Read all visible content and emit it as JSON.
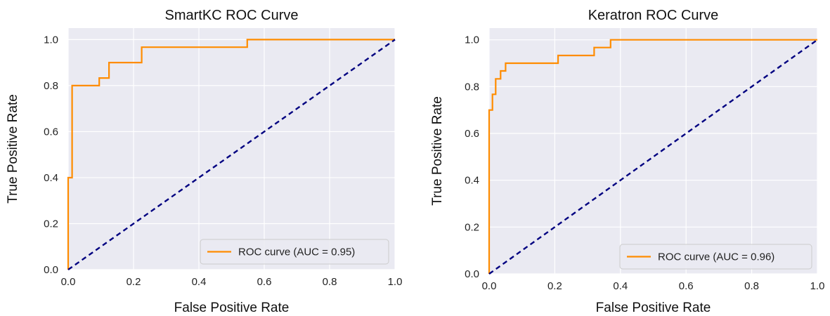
{
  "chart_data": [
    {
      "type": "line",
      "title": "SmartKC ROC Curve",
      "xlabel": "False Positive Rate",
      "ylabel": "True Positive Rate",
      "xlim": [
        0.0,
        1.0
      ],
      "ylim": [
        0.0,
        1.05
      ],
      "xticks": [
        "0.0",
        "0.2",
        "0.4",
        "0.6",
        "0.8",
        "1.0"
      ],
      "yticks": [
        "0.0",
        "0.2",
        "0.4",
        "0.6",
        "0.8",
        "1.0"
      ],
      "grid": true,
      "legend_position": "lower-right",
      "series": [
        {
          "name": "ROC curve (AUC = 0.95)",
          "color": "#ff8c00",
          "style": "solid",
          "x": [
            0.0,
            0.0,
            0.012,
            0.012,
            0.095,
            0.095,
            0.125,
            0.125,
            0.225,
            0.225,
            0.548,
            0.548,
            1.0
          ],
          "y": [
            0.0,
            0.4,
            0.4,
            0.8,
            0.8,
            0.833,
            0.833,
            0.9,
            0.9,
            0.967,
            0.967,
            1.0,
            1.0
          ]
        },
        {
          "color": "#000080",
          "style": "dashed",
          "x": [
            0.0,
            1.0
          ],
          "y": [
            0.0,
            1.0
          ]
        }
      ]
    },
    {
      "type": "line",
      "title": "Keratron ROC Curve",
      "xlabel": "False Positive Rate",
      "ylabel": "True Positive Rate",
      "xlim": [
        0.0,
        1.0
      ],
      "ylim": [
        0.0,
        1.05
      ],
      "xticks": [
        "0.0",
        "0.2",
        "0.4",
        "0.6",
        "0.8",
        "1.0"
      ],
      "yticks": [
        "0.0",
        "0.2",
        "0.4",
        "0.6",
        "0.8",
        "1.0"
      ],
      "grid": true,
      "legend_position": "lower-right",
      "series": [
        {
          "name": "ROC curve (AUC = 0.96)",
          "color": "#ff8c00",
          "style": "solid",
          "x": [
            0.0,
            0.0,
            0.01,
            0.01,
            0.02,
            0.02,
            0.035,
            0.035,
            0.05,
            0.05,
            0.065,
            0.065,
            0.21,
            0.21,
            0.32,
            0.32,
            0.37,
            0.37,
            1.0
          ],
          "y": [
            0.0,
            0.7,
            0.7,
            0.767,
            0.767,
            0.833,
            0.833,
            0.867,
            0.867,
            0.9,
            0.9,
            0.9,
            0.9,
            0.933,
            0.933,
            0.967,
            0.967,
            1.0,
            1.0
          ]
        },
        {
          "color": "#000080",
          "style": "dashed",
          "x": [
            0.0,
            1.0
          ],
          "y": [
            0.0,
            1.0
          ]
        }
      ]
    }
  ]
}
